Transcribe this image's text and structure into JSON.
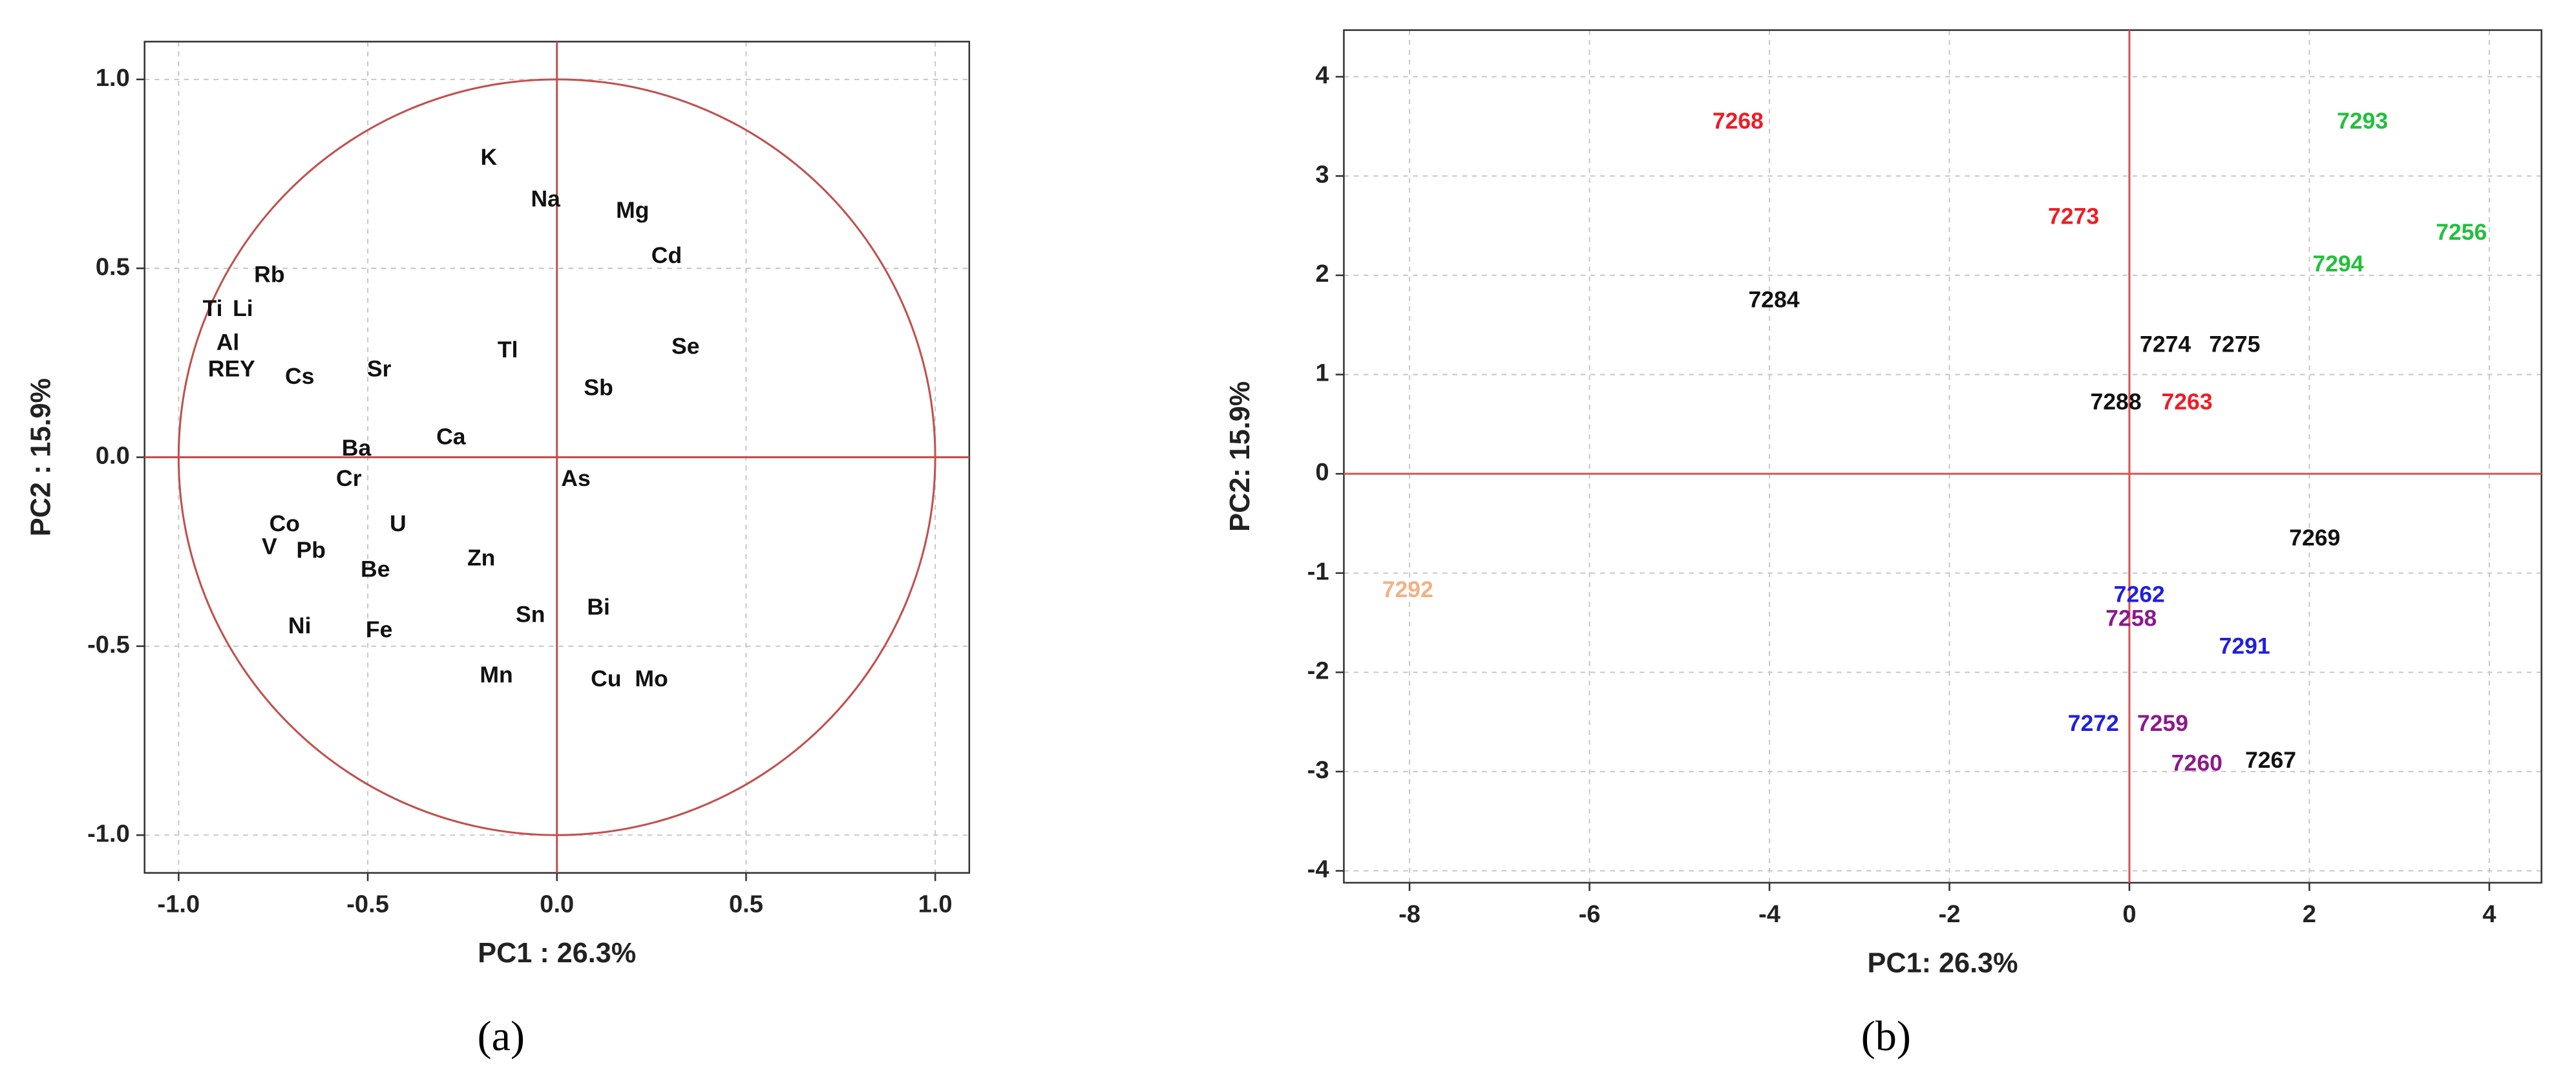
{
  "chart_data": [
    {
      "type": "scatter",
      "panel_label": "(a)",
      "xlabel": "PC1 : 26.3%",
      "ylabel": "PC2 : 15.9%",
      "xlim": [
        -1.09,
        1.09
      ],
      "ylim": [
        -1.1,
        1.1
      ],
      "xticks": [
        {
          "value": -1,
          "label": "-1.0"
        },
        -0.5,
        {
          "value": 0,
          "label": "0.0"
        },
        0.5,
        {
          "value": 1,
          "label": "1.0"
        }
      ],
      "yticks": [
        {
          "value": -1,
          "label": "-1.0"
        },
        -0.5,
        {
          "value": 0,
          "label": "0.0"
        },
        0.5,
        {
          "value": 1,
          "label": "1.0"
        }
      ],
      "grid": true,
      "zero_lines": true,
      "unit_circle": true,
      "line_color": "#c0504d",
      "point_labels": [
        "K",
        "Na",
        "Mg",
        "Cd",
        "Rb",
        "Ti",
        "Li",
        "Al",
        "Se",
        "Tl",
        "REY",
        "Cs",
        "Sr",
        "Sb",
        "Ca",
        "Ba",
        "Cr",
        "As",
        "Co",
        "U",
        "V",
        "Pb",
        "Zn",
        "Be",
        "Bi",
        "Sn",
        "Ni",
        "Fe",
        "Mn",
        "Cu",
        "Mo"
      ],
      "x": [
        -0.18,
        -0.03,
        0.2,
        0.29,
        -0.76,
        -0.91,
        -0.83,
        -0.87,
        0.34,
        -0.13,
        -0.86,
        -0.68,
        -0.47,
        0.11,
        -0.28,
        -0.53,
        -0.55,
        0.05,
        -0.72,
        -0.42,
        -0.76,
        -0.65,
        -0.2,
        -0.48,
        0.11,
        -0.07,
        -0.68,
        -0.47,
        -0.16,
        0.13,
        0.25
      ],
      "values": [
        0.79,
        0.68,
        0.65,
        0.53,
        0.48,
        0.39,
        0.39,
        0.3,
        0.29,
        0.28,
        0.23,
        0.21,
        0.23,
        0.18,
        0.05,
        0.02,
        -0.06,
        -0.06,
        -0.18,
        -0.18,
        -0.24,
        -0.25,
        -0.27,
        -0.3,
        -0.4,
        -0.42,
        -0.45,
        -0.46,
        -0.58,
        -0.59,
        -0.59
      ],
      "color": "#111111"
    },
    {
      "type": "scatter",
      "panel_label": "(b)",
      "xlabel": "PC1: 26.3%",
      "ylabel": "PC2: 15.9%",
      "xlim": [
        -8.73,
        4.58
      ],
      "ylim": [
        -4.12,
        4.47
      ],
      "xticks": [
        -8,
        -6,
        -4,
        -2,
        0,
        2,
        4
      ],
      "yticks": [
        -4,
        -3,
        -2,
        -1,
        0,
        1,
        2,
        3,
        4
      ],
      "grid": true,
      "zero_lines": true,
      "unit_circle": false,
      "line_color": "#d9534f",
      "point_labels": [
        "7268",
        "7293",
        "7273",
        "7256",
        "7294",
        "7284",
        "7274",
        "7275",
        "7288",
        "7263",
        "7269",
        "7292",
        "7262",
        "7258",
        "7291",
        "7272",
        "7259",
        "7260",
        "7267"
      ],
      "x": [
        -4.35,
        2.59,
        -0.62,
        3.69,
        2.32,
        -3.95,
        0.4,
        1.17,
        -0.15,
        0.64,
        2.06,
        -8.02,
        0.11,
        0.02,
        1.28,
        -0.4,
        0.37,
        0.75,
        1.57
      ],
      "values": [
        3.54,
        3.54,
        2.58,
        2.42,
        2.1,
        1.74,
        1.29,
        1.29,
        0.71,
        0.71,
        -0.66,
        -1.18,
        -1.23,
        -1.47,
        -1.75,
        -2.53,
        -2.53,
        -2.93,
        -2.9
      ],
      "point_colors": [
        "#ee1c25",
        "#22c03c",
        "#ee1c25",
        "#22c03c",
        "#22c03c",
        "#111111",
        "#111111",
        "#111111",
        "#111111",
        "#ee1c25",
        "#111111",
        "#f4b183",
        "#1f1fe0",
        "#8b1a8b",
        "#1f1fe0",
        "#1f1fe0",
        "#8b1a8b",
        "#8b1a8b",
        "#111111"
      ]
    }
  ]
}
